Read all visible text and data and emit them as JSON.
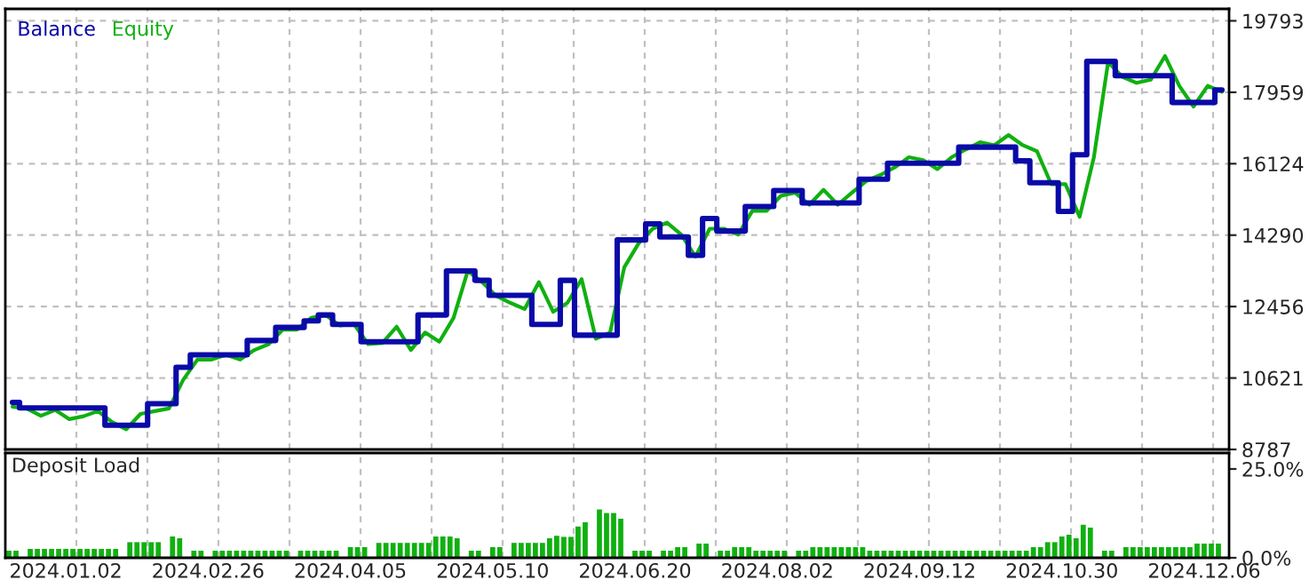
{
  "chart_data": [
    {
      "type": "line",
      "legend": "top left",
      "grid": true,
      "tick_labels": "y",
      "categories": [
        null,
        null,
        null,
        null,
        null,
        null,
        null,
        null,
        null,
        null,
        null,
        null,
        null,
        null,
        null,
        null,
        null,
        null,
        null,
        null,
        null,
        null,
        null,
        null,
        null,
        null,
        null,
        null,
        null,
        null,
        null,
        null,
        null,
        null,
        null,
        null,
        null,
        null,
        null,
        null,
        null,
        null,
        null,
        null,
        null,
        null,
        null,
        null,
        null,
        null,
        null,
        null,
        null,
        null,
        null,
        null,
        null,
        null,
        null,
        null,
        null,
        null,
        null,
        null,
        null,
        null,
        null,
        null,
        null,
        null,
        null,
        null,
        null,
        null,
        null,
        null,
        null,
        null,
        null,
        null,
        null,
        null,
        null,
        null,
        null,
        null
      ],
      "ylim": [
        8787,
        20100
      ],
      "yticks": [
        8787,
        10621,
        12456,
        14290,
        16124,
        17959,
        19793
      ],
      "series": [
        {
          "name": "Balance",
          "type": "step",
          "color": "#0a0aa8",
          "values": [
            9993,
            9854,
            9854,
            9854,
            9854,
            9854,
            9854,
            9410,
            9410,
            9410,
            9961,
            9961,
            10896,
            11217,
            11217,
            11217,
            11217,
            11584,
            11584,
            11920,
            11920,
            12089,
            12240,
            11997,
            11997,
            11553,
            11553,
            11553,
            11553,
            12240,
            12240,
            13373,
            13373,
            13130,
            12745,
            12745,
            12745,
            11997,
            11997,
            13130,
            11722,
            11722,
            11722,
            14166,
            14166,
            14579,
            14244,
            14244,
            13771,
            14717,
            14396,
            14396,
            15024,
            15024,
            15436,
            15436,
            15115,
            15115,
            15115,
            15115,
            15725,
            15725,
            16138,
            16138,
            16138,
            16138,
            16138,
            16551,
            16551,
            16551,
            16551,
            16198,
            15634,
            15634,
            14900,
            16354,
            18752,
            18752,
            18385,
            18385,
            18385,
            18385,
            17697,
            17697,
            17697,
            18018
          ]
        },
        {
          "name": "Equity",
          "type": "line",
          "color": "#10b010",
          "values": [
            9883,
            9840,
            9650,
            9800,
            9565,
            9640,
            9770,
            9490,
            9305,
            9700,
            9770,
            9840,
            10574,
            11094,
            11094,
            11217,
            11094,
            11340,
            11490,
            11865,
            11865,
            12165,
            12240,
            11970,
            12010,
            11490,
            11520,
            11940,
            11340,
            11790,
            11553,
            12165,
            13373,
            13085,
            12730,
            12550,
            12395,
            13085,
            12320,
            12550,
            13160,
            11630,
            11790,
            13465,
            14075,
            14455,
            14610,
            14305,
            13740,
            14455,
            14455,
            14305,
            14915,
            14915,
            15300,
            15380,
            15070,
            15455,
            15070,
            15380,
            15680,
            15835,
            16030,
            16290,
            16215,
            15985,
            16290,
            16490,
            16675,
            16600,
            16860,
            16600,
            16445,
            15600,
            15600,
            14760,
            16290,
            18735,
            18355,
            18200,
            18280,
            18890,
            18125,
            17590,
            18125,
            17970
          ]
        }
      ]
    },
    {
      "type": "bar",
      "title": "Deposit Load",
      "grid": "x",
      "color": "#10b010",
      "categories": [
        null,
        null,
        null,
        null,
        null,
        null,
        null,
        null,
        "2024.01.02",
        null,
        null,
        null,
        null,
        null,
        null,
        null,
        null,
        null,
        null,
        null,
        null,
        null,
        null,
        null,
        null,
        null,
        null,
        null,
        "2024.02.26",
        null,
        null,
        null,
        null,
        null,
        null,
        null,
        null,
        null,
        null,
        null,
        null,
        null,
        null,
        null,
        null,
        null,
        null,
        null,
        "2024.04.05",
        null,
        null,
        null,
        null,
        null,
        null,
        null,
        null,
        null,
        null,
        null,
        null,
        null,
        null,
        null,
        null,
        null,
        null,
        null,
        "2024.05.10",
        null,
        null,
        null,
        null,
        null,
        null,
        null,
        null,
        null,
        null,
        null,
        null,
        null,
        null,
        null,
        null,
        null,
        null,
        null,
        "2024.06.20",
        null,
        null,
        null,
        null,
        null,
        null,
        null,
        null,
        null,
        null,
        null,
        null,
        null,
        null,
        null,
        null,
        null,
        null,
        null,
        "2024.08.02",
        null,
        null,
        null,
        null,
        null,
        null,
        null,
        null,
        null,
        null,
        null,
        null,
        null,
        null,
        null,
        null,
        null,
        null,
        null,
        "2024.09.12",
        null,
        null,
        null,
        null,
        null,
        null,
        null,
        null,
        null,
        null,
        null,
        null,
        null,
        null,
        null,
        null,
        null,
        null,
        null,
        "2024.10.30",
        null,
        null,
        null,
        null,
        null,
        null,
        null,
        null,
        null,
        null,
        null,
        null,
        null,
        null,
        null,
        null,
        null,
        null,
        null,
        "2024.12.06",
        null,
        null,
        null
      ],
      "ylim": [
        0,
        29.5
      ],
      "yticks": [
        {
          "value": 0,
          "label": "0.0%"
        },
        {
          "value": 25,
          "label": "25.0%"
        }
      ],
      "values": [
        2,
        2,
        null,
        2.5,
        2.5,
        2.5,
        2.5,
        2.5,
        2.5,
        2.5,
        2.5,
        2.5,
        2.5,
        2.5,
        2.5,
        2.5,
        null,
        4.4,
        4.4,
        4.4,
        4.4,
        4.4,
        null,
        6,
        5.5,
        null,
        2,
        2,
        null,
        2,
        2,
        2,
        2,
        2,
        2,
        2,
        2,
        2,
        2,
        2,
        null,
        2,
        2,
        2,
        2,
        2,
        2,
        null,
        3,
        3,
        3,
        null,
        4.2,
        4.2,
        4.2,
        4.2,
        4.2,
        4.2,
        4.2,
        4.2,
        6,
        6,
        6,
        5.5,
        null,
        2,
        2,
        null,
        3,
        3,
        null,
        4.2,
        4.2,
        4.2,
        4.2,
        4.2,
        5.5,
        6.2,
        5.9,
        5.9,
        8.8,
        10,
        null,
        13.6,
        12.6,
        12.6,
        11,
        null,
        2,
        2,
        2,
        null,
        2,
        2,
        3,
        3,
        null,
        4,
        4,
        null,
        2,
        2,
        3,
        3,
        3,
        2,
        2,
        2,
        2,
        2,
        null,
        2,
        2,
        3,
        3,
        3,
        3,
        3,
        3,
        3,
        3,
        2,
        2,
        2,
        2,
        2,
        2,
        2,
        2,
        2,
        2,
        2,
        2,
        2,
        2,
        2,
        2,
        2,
        2,
        2,
        2,
        2,
        2,
        2,
        3,
        3,
        4.4,
        4.4,
        6,
        6.5,
        5.5,
        9.3,
        8.5,
        null,
        2,
        2,
        null,
        3,
        3,
        3,
        3,
        3,
        3,
        3,
        3,
        3,
        3,
        4,
        4,
        4,
        4,
        null
      ]
    }
  ]
}
